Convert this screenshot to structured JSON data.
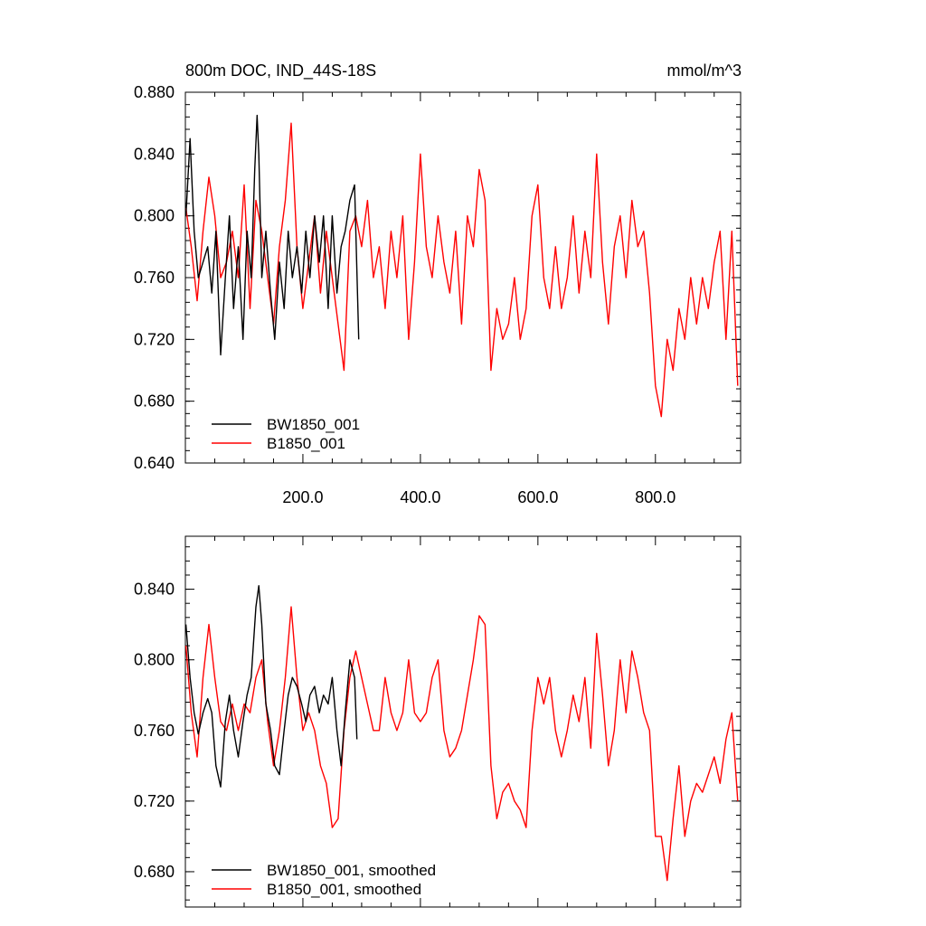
{
  "chart_data": [
    {
      "type": "line",
      "title_left": "800m DOC, IND_44S-18S",
      "title_right": "mmol/m^3",
      "xlim": [
        0,
        945
      ],
      "ylim": [
        0.64,
        0.88
      ],
      "yticks": [
        0.64,
        0.68,
        0.72,
        0.76,
        0.8,
        0.84,
        0.88
      ],
      "ytick_labels": [
        "0.640",
        "0.680",
        "0.720",
        "0.760",
        "0.800",
        "0.840",
        "0.880"
      ],
      "xticks": [
        200,
        400,
        600,
        800
      ],
      "xtick_labels": [
        "200.0",
        "400.0",
        "600.0",
        "800.0"
      ],
      "legend_position": "bottom-left",
      "series": [
        {
          "name": "BW1850_001",
          "color": "#000000",
          "x": [
            1,
            8,
            15,
            22,
            30,
            38,
            45,
            52,
            60,
            68,
            75,
            82,
            90,
            98,
            105,
            112,
            118,
            122,
            125,
            130,
            137,
            145,
            152,
            160,
            168,
            175,
            182,
            190,
            198,
            205,
            212,
            220,
            228,
            235,
            243,
            250,
            258,
            265,
            272,
            280,
            288,
            295
          ],
          "values": [
            0.8,
            0.85,
            0.79,
            0.76,
            0.77,
            0.78,
            0.75,
            0.79,
            0.71,
            0.76,
            0.8,
            0.74,
            0.78,
            0.72,
            0.79,
            0.76,
            0.83,
            0.865,
            0.84,
            0.76,
            0.79,
            0.75,
            0.72,
            0.77,
            0.74,
            0.79,
            0.76,
            0.78,
            0.75,
            0.79,
            0.76,
            0.8,
            0.77,
            0.8,
            0.74,
            0.8,
            0.75,
            0.78,
            0.79,
            0.81,
            0.82,
            0.72
          ]
        },
        {
          "name": "B1850_001",
          "color": "#ff0000",
          "x": [
            1,
            10,
            20,
            30,
            40,
            50,
            60,
            70,
            80,
            90,
            100,
            110,
            120,
            130,
            140,
            150,
            160,
            170,
            180,
            190,
            200,
            210,
            220,
            230,
            240,
            250,
            260,
            270,
            280,
            290,
            300,
            310,
            320,
            330,
            340,
            350,
            360,
            370,
            380,
            390,
            400,
            410,
            420,
            430,
            440,
            450,
            460,
            470,
            480,
            490,
            500,
            510,
            520,
            530,
            540,
            550,
            560,
            570,
            580,
            590,
            600,
            610,
            620,
            630,
            640,
            650,
            660,
            670,
            680,
            690,
            700,
            710,
            720,
            730,
            740,
            750,
            760,
            770,
            780,
            790,
            800,
            810,
            820,
            830,
            840,
            850,
            860,
            870,
            880,
            890,
            900,
            910,
            920,
            930,
            940
          ],
          "values": [
            0.805,
            0.78,
            0.745,
            0.79,
            0.825,
            0.8,
            0.76,
            0.77,
            0.79,
            0.76,
            0.82,
            0.74,
            0.81,
            0.79,
            0.76,
            0.73,
            0.78,
            0.81,
            0.86,
            0.78,
            0.74,
            0.77,
            0.8,
            0.75,
            0.79,
            0.76,
            0.73,
            0.7,
            0.79,
            0.8,
            0.78,
            0.81,
            0.76,
            0.78,
            0.74,
            0.79,
            0.76,
            0.8,
            0.72,
            0.77,
            0.84,
            0.78,
            0.76,
            0.8,
            0.77,
            0.75,
            0.79,
            0.73,
            0.8,
            0.78,
            0.83,
            0.81,
            0.7,
            0.74,
            0.72,
            0.73,
            0.76,
            0.72,
            0.74,
            0.8,
            0.82,
            0.76,
            0.74,
            0.78,
            0.74,
            0.76,
            0.8,
            0.75,
            0.79,
            0.76,
            0.84,
            0.77,
            0.73,
            0.78,
            0.8,
            0.76,
            0.81,
            0.78,
            0.79,
            0.75,
            0.69,
            0.67,
            0.72,
            0.7,
            0.74,
            0.72,
            0.76,
            0.73,
            0.76,
            0.74,
            0.77,
            0.79,
            0.72,
            0.79,
            0.69
          ]
        }
      ]
    },
    {
      "type": "line",
      "xlim": [
        0,
        945
      ],
      "ylim": [
        0.66,
        0.87
      ],
      "yticks": [
        0.68,
        0.72,
        0.76,
        0.8,
        0.84
      ],
      "ytick_labels": [
        "0.680",
        "0.720",
        "0.760",
        "0.800",
        "0.840"
      ],
      "xticks": [
        200,
        400,
        600,
        800
      ],
      "legend_position": "bottom-left",
      "series": [
        {
          "name": "BW1850_001, smoothed",
          "color": "#000000",
          "x": [
            1,
            8,
            15,
            22,
            30,
            38,
            45,
            52,
            60,
            68,
            75,
            82,
            90,
            98,
            105,
            112,
            120,
            125,
            130,
            137,
            145,
            152,
            160,
            168,
            175,
            182,
            190,
            198,
            205,
            212,
            220,
            228,
            235,
            243,
            250,
            258,
            265,
            272,
            280,
            288,
            292
          ],
          "values": [
            0.82,
            0.79,
            0.77,
            0.758,
            0.77,
            0.778,
            0.77,
            0.74,
            0.728,
            0.765,
            0.78,
            0.76,
            0.745,
            0.765,
            0.78,
            0.79,
            0.83,
            0.842,
            0.82,
            0.775,
            0.76,
            0.74,
            0.735,
            0.76,
            0.78,
            0.79,
            0.785,
            0.775,
            0.765,
            0.78,
            0.785,
            0.77,
            0.78,
            0.775,
            0.79,
            0.76,
            0.74,
            0.77,
            0.8,
            0.79,
            0.755
          ]
        },
        {
          "name": "B1850_001, smoothed",
          "color": "#ff0000",
          "x": [
            1,
            10,
            20,
            30,
            40,
            50,
            60,
            70,
            80,
            90,
            100,
            110,
            120,
            130,
            140,
            150,
            160,
            170,
            180,
            190,
            200,
            210,
            220,
            230,
            240,
            250,
            260,
            270,
            280,
            290,
            300,
            310,
            320,
            330,
            340,
            350,
            360,
            370,
            380,
            390,
            400,
            410,
            420,
            430,
            440,
            450,
            460,
            470,
            480,
            490,
            500,
            510,
            520,
            530,
            540,
            550,
            560,
            570,
            580,
            590,
            600,
            610,
            620,
            630,
            640,
            650,
            660,
            670,
            680,
            690,
            700,
            710,
            720,
            730,
            740,
            750,
            760,
            770,
            780,
            790,
            800,
            810,
            820,
            830,
            840,
            850,
            860,
            870,
            880,
            890,
            900,
            910,
            920,
            930,
            940
          ],
          "values": [
            0.808,
            0.77,
            0.745,
            0.79,
            0.82,
            0.79,
            0.765,
            0.76,
            0.775,
            0.76,
            0.775,
            0.77,
            0.79,
            0.8,
            0.765,
            0.74,
            0.76,
            0.79,
            0.83,
            0.79,
            0.76,
            0.77,
            0.76,
            0.74,
            0.73,
            0.705,
            0.71,
            0.76,
            0.79,
            0.805,
            0.79,
            0.775,
            0.76,
            0.76,
            0.79,
            0.77,
            0.76,
            0.77,
            0.8,
            0.77,
            0.765,
            0.77,
            0.79,
            0.8,
            0.76,
            0.745,
            0.75,
            0.76,
            0.78,
            0.8,
            0.825,
            0.82,
            0.74,
            0.71,
            0.725,
            0.73,
            0.72,
            0.715,
            0.705,
            0.76,
            0.79,
            0.775,
            0.79,
            0.76,
            0.745,
            0.76,
            0.78,
            0.765,
            0.79,
            0.75,
            0.815,
            0.78,
            0.74,
            0.76,
            0.8,
            0.77,
            0.805,
            0.79,
            0.77,
            0.76,
            0.7,
            0.7,
            0.675,
            0.71,
            0.74,
            0.7,
            0.72,
            0.73,
            0.725,
            0.735,
            0.745,
            0.73,
            0.755,
            0.77,
            0.72
          ]
        }
      ]
    }
  ]
}
